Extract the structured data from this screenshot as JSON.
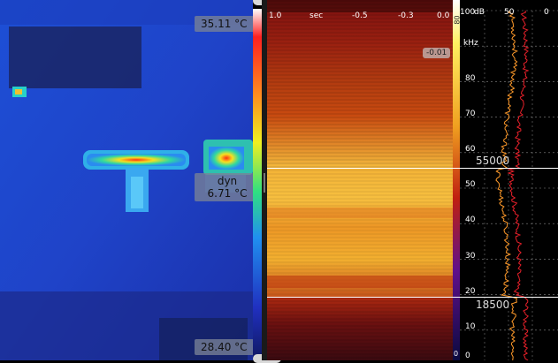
{
  "thermal": {
    "max_label": "35.11 °C",
    "spot_mode": "dyn",
    "spot_value": "6.71 °C",
    "min_label": "28.40 °C"
  },
  "spectrogram": {
    "axis_unit": "sec",
    "time_ticks": [
      "1.0",
      "-0.5",
      "-0.3",
      "0.0"
    ],
    "cursor_value": "-0.01",
    "colorbar_top": "80",
    "colorbar_bottom": "0"
  },
  "spectrum": {
    "db_unit": "dB",
    "db_ticks": [
      "100",
      "50",
      "0"
    ],
    "freq_unit": "kHz",
    "freq_ticks": [
      "80",
      "70",
      "60",
      "50",
      "40",
      "30",
      "20",
      "10",
      "0"
    ],
    "marker_high": "55000",
    "marker_low": "18500"
  },
  "colors": {
    "spectrum_trace_1": "#ff9a2a",
    "spectrum_trace_2": "#e8202a",
    "marker_line": "#ffffff"
  }
}
